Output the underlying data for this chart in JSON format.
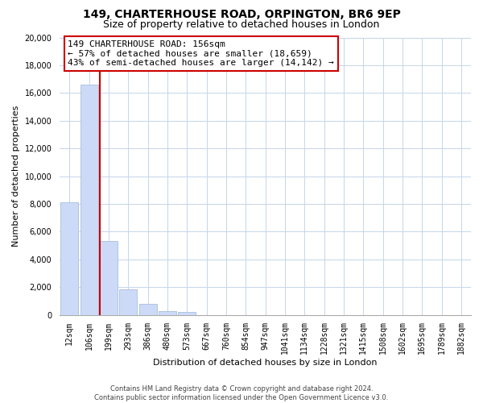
{
  "title1": "149, CHARTERHOUSE ROAD, ORPINGTON, BR6 9EP",
  "title2": "Size of property relative to detached houses in London",
  "xlabel": "Distribution of detached houses by size in London",
  "ylabel": "Number of detached properties",
  "bar_labels": [
    "12sqm",
    "106sqm",
    "199sqm",
    "293sqm",
    "386sqm",
    "480sqm",
    "573sqm",
    "667sqm",
    "760sqm",
    "854sqm",
    "947sqm",
    "1041sqm",
    "1134sqm",
    "1228sqm",
    "1321sqm",
    "1415sqm",
    "1508sqm",
    "1602sqm",
    "1695sqm",
    "1789sqm",
    "1882sqm"
  ],
  "bar_values": [
    8100,
    16600,
    5300,
    1850,
    800,
    300,
    200,
    0,
    0,
    0,
    0,
    0,
    0,
    0,
    0,
    0,
    0,
    0,
    0,
    0,
    0
  ],
  "bar_color": "#ccdaf8",
  "bar_edge_color": "#a8bedd",
  "vline_color": "#cc0000",
  "vline_x": 1.55,
  "annotation_title": "149 CHARTERHOUSE ROAD: 156sqm",
  "annotation_line1": "← 57% of detached houses are smaller (18,659)",
  "annotation_line2": "43% of semi-detached houses are larger (14,142) →",
  "annotation_box_facecolor": "#ffffff",
  "annotation_box_edgecolor": "#cc0000",
  "ylim": [
    0,
    20000
  ],
  "yticks": [
    0,
    2000,
    4000,
    6000,
    8000,
    10000,
    12000,
    14000,
    16000,
    18000,
    20000
  ],
  "footer_line1": "Contains HM Land Registry data © Crown copyright and database right 2024.",
  "footer_line2": "Contains public sector information licensed under the Open Government Licence v3.0.",
  "background_color": "#ffffff",
  "grid_color": "#c5d5ea",
  "title1_fontsize": 10,
  "title2_fontsize": 9,
  "xlabel_fontsize": 8,
  "ylabel_fontsize": 8,
  "tick_fontsize": 7,
  "footer_fontsize": 6,
  "annotation_fontsize": 8
}
